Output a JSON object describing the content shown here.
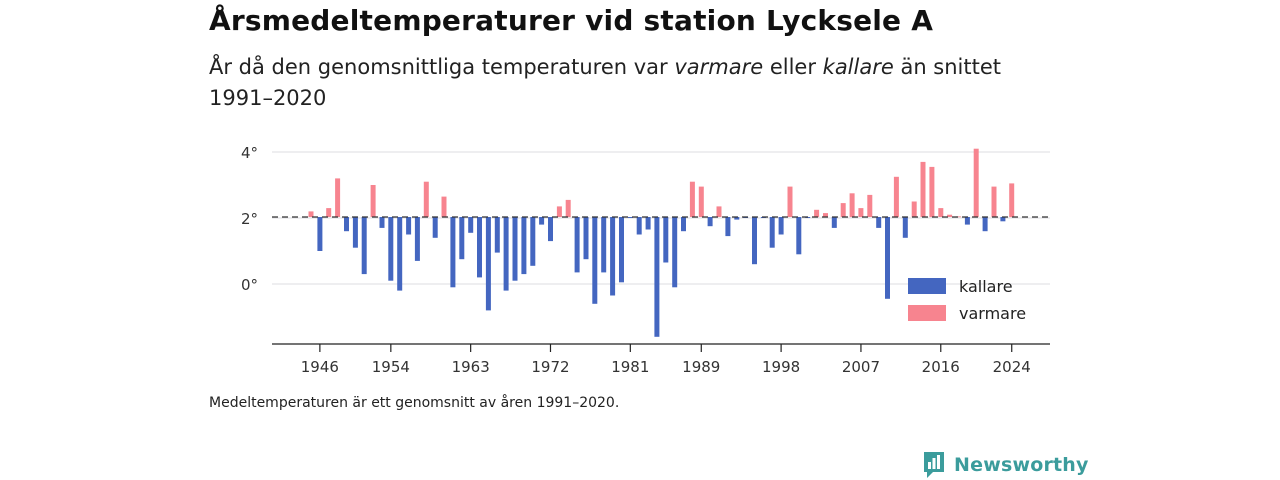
{
  "title": "Årsmedeltemperaturer vid station Lycksele A",
  "subtitle": {
    "part1": "År då den genomsnittliga temperaturen var ",
    "warm_word": "varmare",
    "part2": " eller ",
    "cold_word": "kallare",
    "part3": " än snittet 1991–2020"
  },
  "footnote": "Medeltemperaturen är ett genomsnitt av åren 1991–2020.",
  "brand": {
    "name": "Newsworthy",
    "icon": "newsworthy-chart-icon",
    "color": "#3b9c9c"
  },
  "chart_data": {
    "type": "bar",
    "baseline": 2.03,
    "ylim": [
      -1.8,
      4.6
    ],
    "y_ticks": [
      0,
      2,
      4
    ],
    "y_tick_labels": [
      "0°",
      "2°",
      "4°"
    ],
    "x_ticks": [
      1946,
      1954,
      1963,
      1972,
      1981,
      1989,
      1998,
      2007,
      2016,
      2024
    ],
    "x_tick_labels": [
      "1946",
      "1954",
      "1963",
      "1972",
      "1981",
      "1989",
      "1998",
      "2007",
      "2016",
      "2024"
    ],
    "colors": {
      "kallare": "#4466c0",
      "varmare": "#f7848f"
    },
    "legend": [
      {
        "key": "kallare",
        "label": "kallare"
      },
      {
        "key": "varmare",
        "label": "varmare"
      }
    ],
    "legend_position": "bottom-right",
    "grid": "horizontal",
    "x": [
      1945,
      1946,
      1947,
      1948,
      1949,
      1950,
      1951,
      1952,
      1953,
      1954,
      1955,
      1956,
      1957,
      1958,
      1959,
      1960,
      1961,
      1962,
      1963,
      1964,
      1965,
      1966,
      1967,
      1968,
      1969,
      1970,
      1971,
      1972,
      1973,
      1974,
      1975,
      1976,
      1977,
      1978,
      1979,
      1980,
      1981,
      1982,
      1983,
      1984,
      1985,
      1986,
      1987,
      1988,
      1989,
      1990,
      1991,
      1992,
      1993,
      1994,
      1995,
      1996,
      1997,
      1998,
      1999,
      2000,
      2001,
      2002,
      2003,
      2004,
      2005,
      2006,
      2007,
      2008,
      2009,
      2010,
      2011,
      2012,
      2013,
      2014,
      2015,
      2016,
      2017,
      2018,
      2019,
      2020,
      2021,
      2022,
      2023,
      2024
    ],
    "values": [
      2.2,
      1.0,
      2.3,
      3.2,
      1.6,
      1.1,
      0.3,
      3.0,
      1.7,
      0.1,
      -0.2,
      1.5,
      0.7,
      3.1,
      1.4,
      2.65,
      -0.1,
      0.75,
      1.55,
      0.2,
      -0.8,
      0.95,
      -0.2,
      0.1,
      0.3,
      0.55,
      1.8,
      1.3,
      2.35,
      2.55,
      0.35,
      0.75,
      -0.6,
      0.35,
      -0.35,
      0.05,
      2.0,
      1.5,
      1.65,
      -1.6,
      0.65,
      -0.1,
      1.6,
      3.1,
      2.95,
      1.75,
      2.35,
      1.45,
      1.95,
      2.0,
      0.6,
      2.0,
      1.1,
      1.5,
      2.95,
      0.9,
      2.0,
      2.25,
      2.15,
      1.7,
      2.45,
      2.75,
      2.3,
      2.7,
      1.7,
      -0.45,
      3.25,
      1.4,
      2.5,
      3.7,
      3.55,
      2.3,
      2.1,
      2.05,
      1.8,
      4.1,
      1.6,
      2.95,
      1.9,
      3.05
    ]
  }
}
